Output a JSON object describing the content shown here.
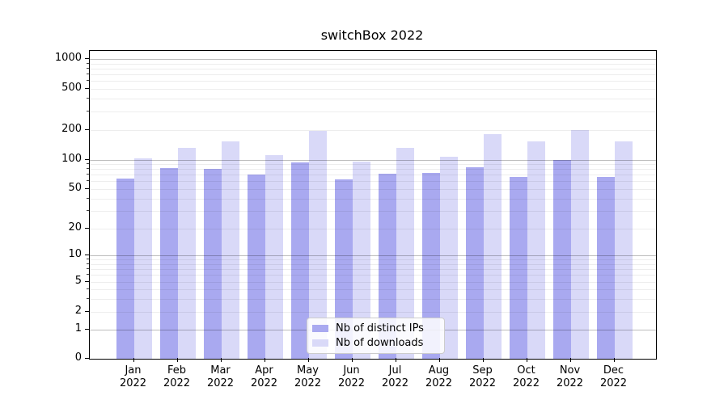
{
  "title": "switchBox 2022",
  "chart_data": {
    "type": "bar",
    "title": "switchBox 2022",
    "xlabel": "",
    "ylabel": "",
    "yscale": "symlog",
    "ylim": [
      0,
      1150
    ],
    "grid": "horizontal, log minor gridlines",
    "legend_position": "lower center",
    "y_ticks": [
      1000,
      500,
      200,
      100,
      50,
      20,
      10,
      5,
      2,
      1,
      0
    ],
    "categories": [
      "Jan 2022",
      "Feb 2022",
      "Mar 2022",
      "Apr 2022",
      "May 2022",
      "Jun 2022",
      "Jul 2022",
      "Aug 2022",
      "Sep 2022",
      "Oct 2022",
      "Nov 2022",
      "Dec 2022"
    ],
    "series": [
      {
        "name": "Nb of distinct IPs",
        "color": "#a9a9f0",
        "values": [
          64,
          82,
          80,
          71,
          94,
          63,
          72,
          73,
          84,
          66,
          100,
          67
        ]
      },
      {
        "name": "Nb of downloads",
        "color": "#d9d9f8",
        "values": [
          103,
          132,
          154,
          110,
          196,
          95,
          131,
          106,
          182,
          154,
          201,
          152
        ]
      }
    ]
  },
  "legend": {
    "items": [
      {
        "label": "Nb of distinct IPs",
        "color": "#a9a9f0"
      },
      {
        "label": "Nb of downloads",
        "color": "#d9d9f8"
      }
    ]
  }
}
